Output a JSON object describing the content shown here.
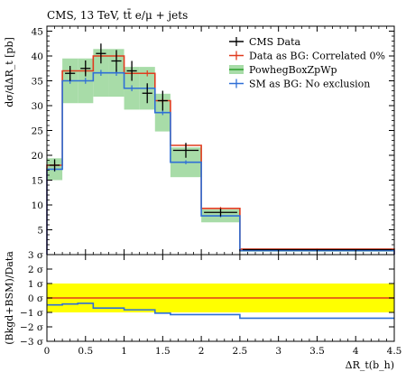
{
  "chart_data": {
    "type": "histogram",
    "title": "CMS, 13 TeV, tt̄ e/μ + jets",
    "xlabel": "ΔR_t(b_h)",
    "ylabel": "dσ/dΔR_t [pb]",
    "xlim": [
      0,
      4.5
    ],
    "ylim": [
      0,
      46
    ],
    "x_ticks": [
      "0",
      "0.5",
      "1",
      "1.5",
      "2",
      "2.5",
      "3",
      "3.5",
      "4",
      "4.5"
    ],
    "y_ticks": [
      "5",
      "10",
      "15",
      "20",
      "25",
      "30",
      "35",
      "40",
      "45"
    ],
    "bin_edges": [
      0,
      0.2,
      0.4,
      0.6,
      0.8,
      1.0,
      1.2,
      1.4,
      1.6,
      2.0,
      2.5,
      4.5
    ],
    "legend_position": "top-right",
    "series": [
      {
        "name": "CMS Data",
        "color": "#000000",
        "style": "points",
        "values": [
          18.0,
          36.5,
          37.5,
          40.5,
          39.0,
          37.0,
          32.5,
          31.0,
          21.0,
          8.5,
          1.0
        ],
        "errors": [
          1.2,
          1.5,
          1.6,
          2.0,
          2.2,
          2.0,
          2.0,
          2.0,
          1.5,
          0.8,
          0.1
        ]
      },
      {
        "name": "Data as BG: Correlated 0%",
        "color": "#e03b1e",
        "style": "step",
        "values": [
          18.0,
          37.0,
          37.0,
          40.0,
          40.0,
          36.5,
          36.5,
          31.0,
          22.0,
          9.3,
          1.1
        ],
        "errors": [
          0.5,
          0.6,
          0.6,
          0.6,
          0.6,
          0.6,
          0.6,
          0.5,
          0.4,
          0.3,
          0.1
        ]
      },
      {
        "name": "PowhegBoxZpWp",
        "color": "#2ca02c",
        "style": "band",
        "values": [
          17.2,
          35.0,
          35.0,
          36.6,
          36.6,
          33.5,
          33.5,
          28.6,
          18.6,
          7.8,
          0.8
        ],
        "errors": [
          2.2,
          4.5,
          4.5,
          4.8,
          4.8,
          4.3,
          4.3,
          3.8,
          3.0,
          1.3,
          0.2
        ]
      },
      {
        "name": "SM as BG: No exclusion",
        "color": "#2f6fd6",
        "style": "step",
        "values": [
          17.2,
          35.0,
          35.0,
          36.6,
          36.6,
          33.5,
          33.5,
          28.6,
          18.6,
          7.8,
          0.8
        ],
        "errors": [
          0.5,
          0.6,
          0.6,
          0.6,
          0.6,
          0.6,
          0.6,
          0.5,
          0.4,
          0.3,
          0.1
        ]
      }
    ],
    "ratio": {
      "ylabel": "(Bkgd+BSM)/Data",
      "ylim": [
        -3,
        3
      ],
      "y_ticks": [
        "3 σ",
        "2 σ",
        "1 σ",
        "0 σ",
        "−1 σ",
        "−2 σ",
        "−3 σ"
      ],
      "y_tick_values": [
        3,
        2,
        1,
        0,
        -1,
        -2,
        -3
      ],
      "band": [
        -1,
        1
      ],
      "band_color": "#ffff00",
      "red_values": [
        0,
        0,
        0,
        0,
        0,
        0,
        0,
        0,
        0,
        0,
        0
      ],
      "blue_values": [
        -0.48,
        -0.42,
        -0.37,
        -0.7,
        -0.7,
        -0.82,
        -0.82,
        -1.05,
        -1.15,
        -1.15,
        -1.4
      ]
    }
  }
}
